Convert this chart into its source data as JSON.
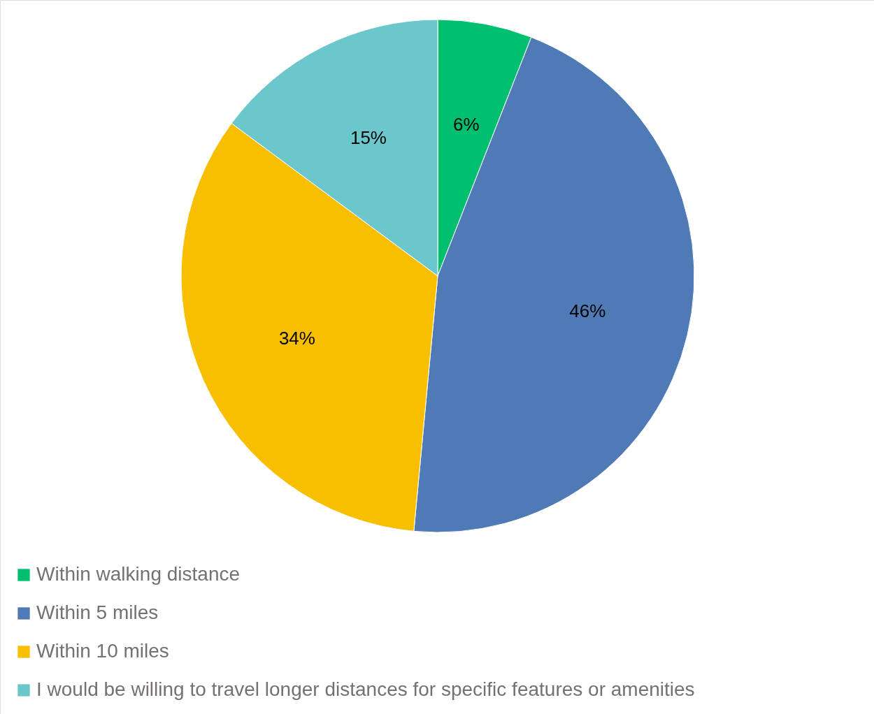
{
  "chart_data": {
    "type": "pie",
    "categories": [
      "Within walking distance",
      "Within 5 miles",
      "Within 10 miles",
      "I would be willing to travel longer distances for specific features or amenities"
    ],
    "values": [
      6,
      46,
      34,
      15
    ],
    "value_labels": [
      "6%",
      "46%",
      "34%",
      "15%"
    ],
    "colors": [
      "#00bf6f",
      "#4f7ab5",
      "#f8be00",
      "#6cc7cc"
    ],
    "legend": "bottom left"
  }
}
